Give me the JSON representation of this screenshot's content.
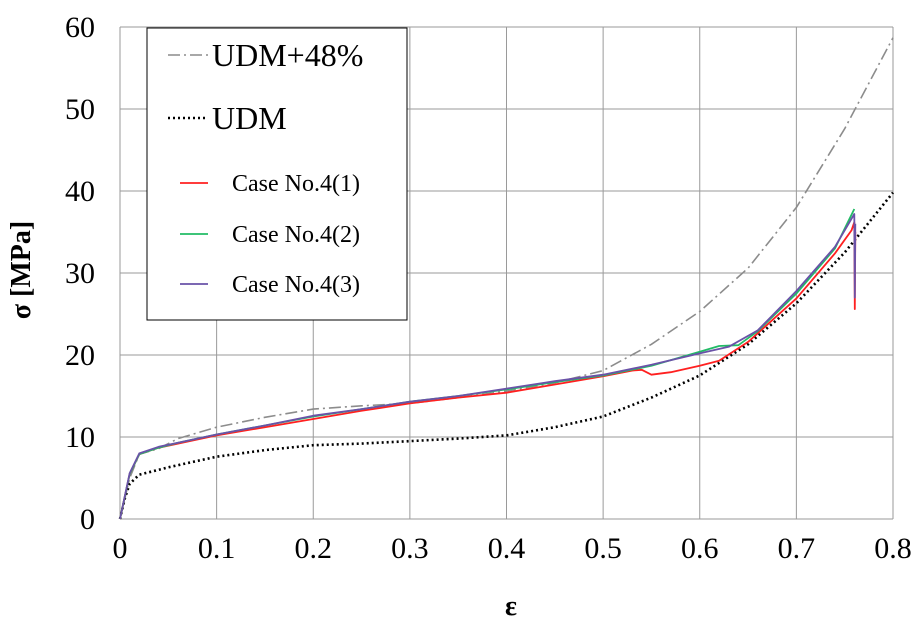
{
  "chart_data": {
    "type": "line",
    "xlabel": "ε",
    "ylabel": "σ [MPa]",
    "xlim": [
      0,
      0.8
    ],
    "ylim": [
      0,
      60
    ],
    "x_ticks": [
      "0",
      "0.1",
      "0.2",
      "0.3",
      "0.4",
      "0.5",
      "0.6",
      "0.7",
      "0.8"
    ],
    "y_ticks": [
      "0",
      "10",
      "20",
      "30",
      "40",
      "50",
      "60"
    ],
    "grid": true,
    "legend_position": "top-left",
    "series": [
      {
        "name": "UDM+48%",
        "color": "#8c8c8c",
        "style": "dash-dot",
        "x": [
          0,
          0.01,
          0.02,
          0.04,
          0.06,
          0.1,
          0.15,
          0.2,
          0.25,
          0.3,
          0.35,
          0.4,
          0.45,
          0.5,
          0.55,
          0.6,
          0.65,
          0.7,
          0.75,
          0.8
        ],
        "y": [
          0,
          5,
          7.9,
          8.6,
          9.8,
          11.2,
          12.4,
          13.4,
          13.8,
          14.1,
          14.8,
          15.6,
          16.6,
          18.1,
          21.3,
          25.3,
          30.6,
          38.0,
          47.6,
          58.7
        ]
      },
      {
        "name": "UDM",
        "color": "#000000",
        "style": "dotted",
        "x": [
          0,
          0.005,
          0.01,
          0.02,
          0.05,
          0.1,
          0.15,
          0.2,
          0.25,
          0.3,
          0.35,
          0.4,
          0.45,
          0.5,
          0.55,
          0.6,
          0.65,
          0.7,
          0.75,
          0.8
        ],
        "y": [
          0,
          2.5,
          4.3,
          5.4,
          6.3,
          7.6,
          8.4,
          9.0,
          9.2,
          9.5,
          9.8,
          10.2,
          11.2,
          12.5,
          14.8,
          17.5,
          21.3,
          26.3,
          32.5,
          39.8
        ]
      },
      {
        "name": "Case No.4(1)",
        "color": "#ff2020",
        "style": "solid",
        "x": [
          0,
          0.01,
          0.02,
          0.04,
          0.06,
          0.1,
          0.15,
          0.2,
          0.25,
          0.3,
          0.35,
          0.4,
          0.45,
          0.5,
          0.53,
          0.54,
          0.55,
          0.57,
          0.6,
          0.62,
          0.65,
          0.7,
          0.74,
          0.757,
          0.76,
          0.7605,
          0.761
        ],
        "y": [
          0,
          5.5,
          7.9,
          8.7,
          9.2,
          10.2,
          11.2,
          12.2,
          13.2,
          14.1,
          14.8,
          15.4,
          16.4,
          17.4,
          18.1,
          18.2,
          17.6,
          17.9,
          18.7,
          19.3,
          21.6,
          26.9,
          32.4,
          35.2,
          36.2,
          25.6,
          35.0
        ]
      },
      {
        "name": "Case No.4(2)",
        "color": "#22bb66",
        "style": "solid",
        "x": [
          0,
          0.01,
          0.02,
          0.04,
          0.06,
          0.1,
          0.15,
          0.2,
          0.25,
          0.3,
          0.35,
          0.4,
          0.45,
          0.5,
          0.55,
          0.6,
          0.62,
          0.64,
          0.66,
          0.7,
          0.74,
          0.76
        ],
        "y": [
          0,
          5.5,
          7.9,
          8.7,
          9.3,
          10.3,
          11.4,
          12.5,
          13.4,
          14.3,
          15.0,
          15.8,
          16.7,
          17.5,
          18.7,
          20.4,
          21.1,
          21.2,
          22.9,
          27.5,
          33.0,
          37.8
        ]
      },
      {
        "name": "Case No.4(3)",
        "color": "#6a52a8",
        "style": "solid",
        "x": [
          0,
          0.01,
          0.02,
          0.04,
          0.06,
          0.1,
          0.15,
          0.2,
          0.25,
          0.3,
          0.35,
          0.4,
          0.45,
          0.5,
          0.55,
          0.6,
          0.63,
          0.66,
          0.7,
          0.74,
          0.76,
          0.7605,
          0.761
        ],
        "y": [
          0,
          5.6,
          8.0,
          8.8,
          9.3,
          10.3,
          11.4,
          12.6,
          13.4,
          14.3,
          15.0,
          15.9,
          16.8,
          17.6,
          18.8,
          20.2,
          21.0,
          23.0,
          27.8,
          33.2,
          37.2,
          27.0,
          36.0
        ]
      }
    ]
  }
}
